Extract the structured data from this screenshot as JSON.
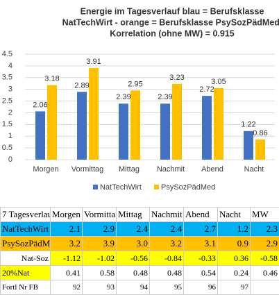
{
  "chart_data": {
    "type": "bar",
    "title": [
      "Energie im Tagesverlauf blau = Berufsklasse",
      "NatTechWirt - orange = Berufsklasse PsySozPädMed,",
      "Korrelation (ohne MW) = 0.915"
    ],
    "categories": [
      "Morgen",
      "Vormittag",
      "Mittag",
      "Nachmit",
      "Abend",
      "Nacht"
    ],
    "series": [
      {
        "name": "NatTechWirt",
        "color": "#4472c4",
        "values": [
          2.06,
          2.89,
          2.39,
          2.39,
          2.72,
          1.22
        ]
      },
      {
        "name": "PsySozPädMed",
        "color": "#ffc000",
        "values": [
          3.18,
          3.91,
          2.95,
          3.23,
          3.05,
          0.86
        ]
      }
    ],
    "ylim": [
      0,
      4.5
    ],
    "yticks": [
      0,
      0.5,
      1,
      1.5,
      2,
      2.5,
      3,
      3.5,
      4,
      4.5
    ],
    "grid": true,
    "legend": "bottom"
  },
  "table": {
    "header": [
      "7  Tagesverlau",
      "Morgen",
      "Vormitta",
      "Mittag",
      "Nachmit",
      "Abend",
      "Nacht",
      "MW"
    ],
    "rows": [
      [
        "NatTechWirt",
        "2.1",
        "2.9",
        "2.4",
        "2.4",
        "2.7",
        "1.2",
        "2.3"
      ],
      [
        "PsySozPädMed",
        "3.2",
        "3.9",
        "3.0",
        "3.2",
        "3.1",
        "0.9",
        "2.9"
      ],
      [
        "Nat-Soz",
        "-1.12",
        "-1.02",
        "-0.56",
        "-0.84",
        "-0.33",
        "0.36",
        "-0.58"
      ],
      [
        "20%Nat",
        "0.41",
        "0.58",
        "0.48",
        "0.48",
        "0.54",
        "0.24",
        "0.46"
      ],
      [
        "Fortl Nr FB",
        "92",
        "93",
        "94",
        "95",
        "96",
        "97",
        null
      ]
    ]
  }
}
